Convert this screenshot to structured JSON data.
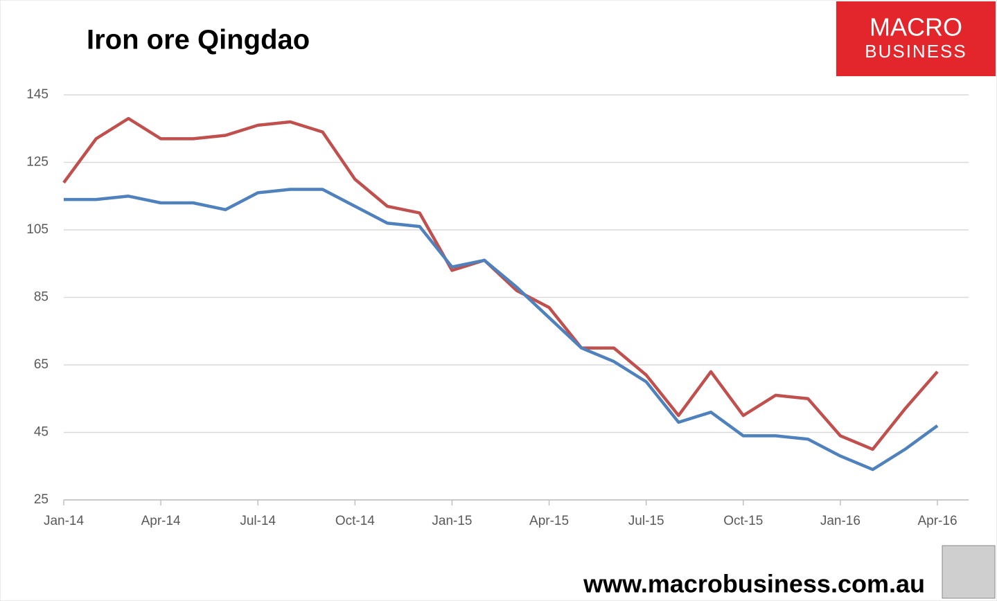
{
  "chart_data": {
    "type": "line",
    "title": "Iron ore Qingdao",
    "categories": [
      "Jan-14",
      null,
      null,
      "Apr-14",
      null,
      null,
      "Jul-14",
      null,
      null,
      "Oct-14",
      null,
      null,
      "Jan-15",
      null,
      null,
      "Apr-15",
      null,
      null,
      "Jul-15",
      null,
      null,
      "Oct-15",
      null,
      null,
      "Jan-16",
      null,
      null,
      "Apr-16"
    ],
    "series": [
      {
        "color": "#c0504d",
        "values": [
          119,
          132,
          138,
          132,
          132,
          133,
          136,
          137,
          134,
          120,
          112,
          110,
          93,
          96,
          87,
          82,
          70,
          70,
          62,
          50,
          63,
          50,
          56,
          55,
          44,
          40,
          52,
          63
        ]
      },
      {
        "color": "#4f81bd",
        "values": [
          114,
          114,
          115,
          113,
          113,
          111,
          116,
          117,
          117,
          112,
          107,
          106,
          94,
          96,
          88,
          79,
          70,
          66,
          60,
          48,
          51,
          44,
          44,
          43,
          38,
          34,
          40,
          47
        ]
      }
    ],
    "ylim": [
      25,
      145
    ],
    "yticks": [
      25,
      45,
      65,
      85,
      105,
      125,
      145
    ],
    "grid": true
  },
  "logo": {
    "line1": "MACRO",
    "line2": "BUSINESS"
  },
  "footer": "www.macrobusiness.com.au"
}
